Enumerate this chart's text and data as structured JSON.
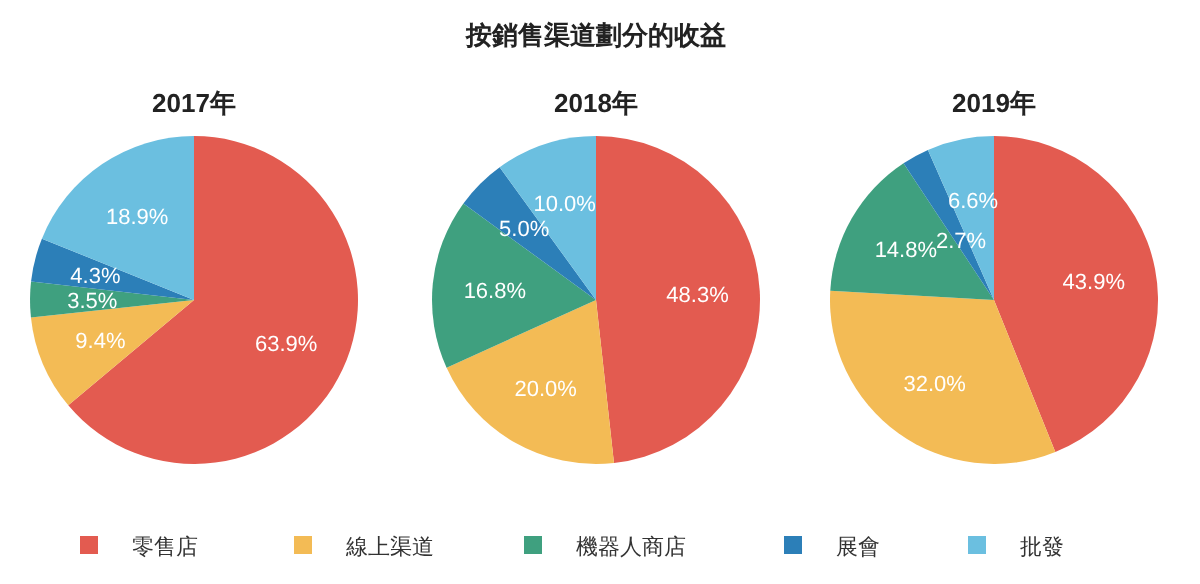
{
  "chart_data": [
    {
      "type": "pie",
      "subtitle": "2017年",
      "categories": [
        "零售店",
        "線上渠道",
        "機器人商店",
        "展會",
        "批發"
      ],
      "values": [
        63.9,
        9.4,
        3.5,
        4.3,
        18.9
      ],
      "value_labels": [
        "63.9%",
        "9.4%",
        "3.5%",
        "4.3%",
        "18.9%"
      ],
      "colors": [
        "#e35b50",
        "#f3bb55",
        "#3fa07f",
        "#2c7fb8",
        "#6bbfe0"
      ],
      "legend": "bottom"
    },
    {
      "type": "pie",
      "title": "按銷售渠道劃分的收益",
      "subtitle": "2018年",
      "values": [
        48.3,
        20.0,
        16.8,
        5.0,
        10.0
      ],
      "value_labels": [
        "48.3%",
        "20.0%",
        "16.8%",
        "5.0%",
        "10.0%"
      ],
      "colors": [
        "#e35b50",
        "#f3bb55",
        "#3fa07f",
        "#2c7fb8",
        "#6bbfe0"
      ]
    },
    {
      "type": "pie",
      "subtitle": "2019年",
      "values": [
        43.9,
        32.0,
        14.8,
        2.7,
        6.6
      ],
      "value_labels": [
        "43.9%",
        "32.0%",
        "14.8%",
        "2.7%",
        "6.6%"
      ],
      "colors": [
        "#e35b50",
        "#f3bb55",
        "#3fa07f",
        "#2c7fb8",
        "#6bbfe0"
      ]
    }
  ]
}
